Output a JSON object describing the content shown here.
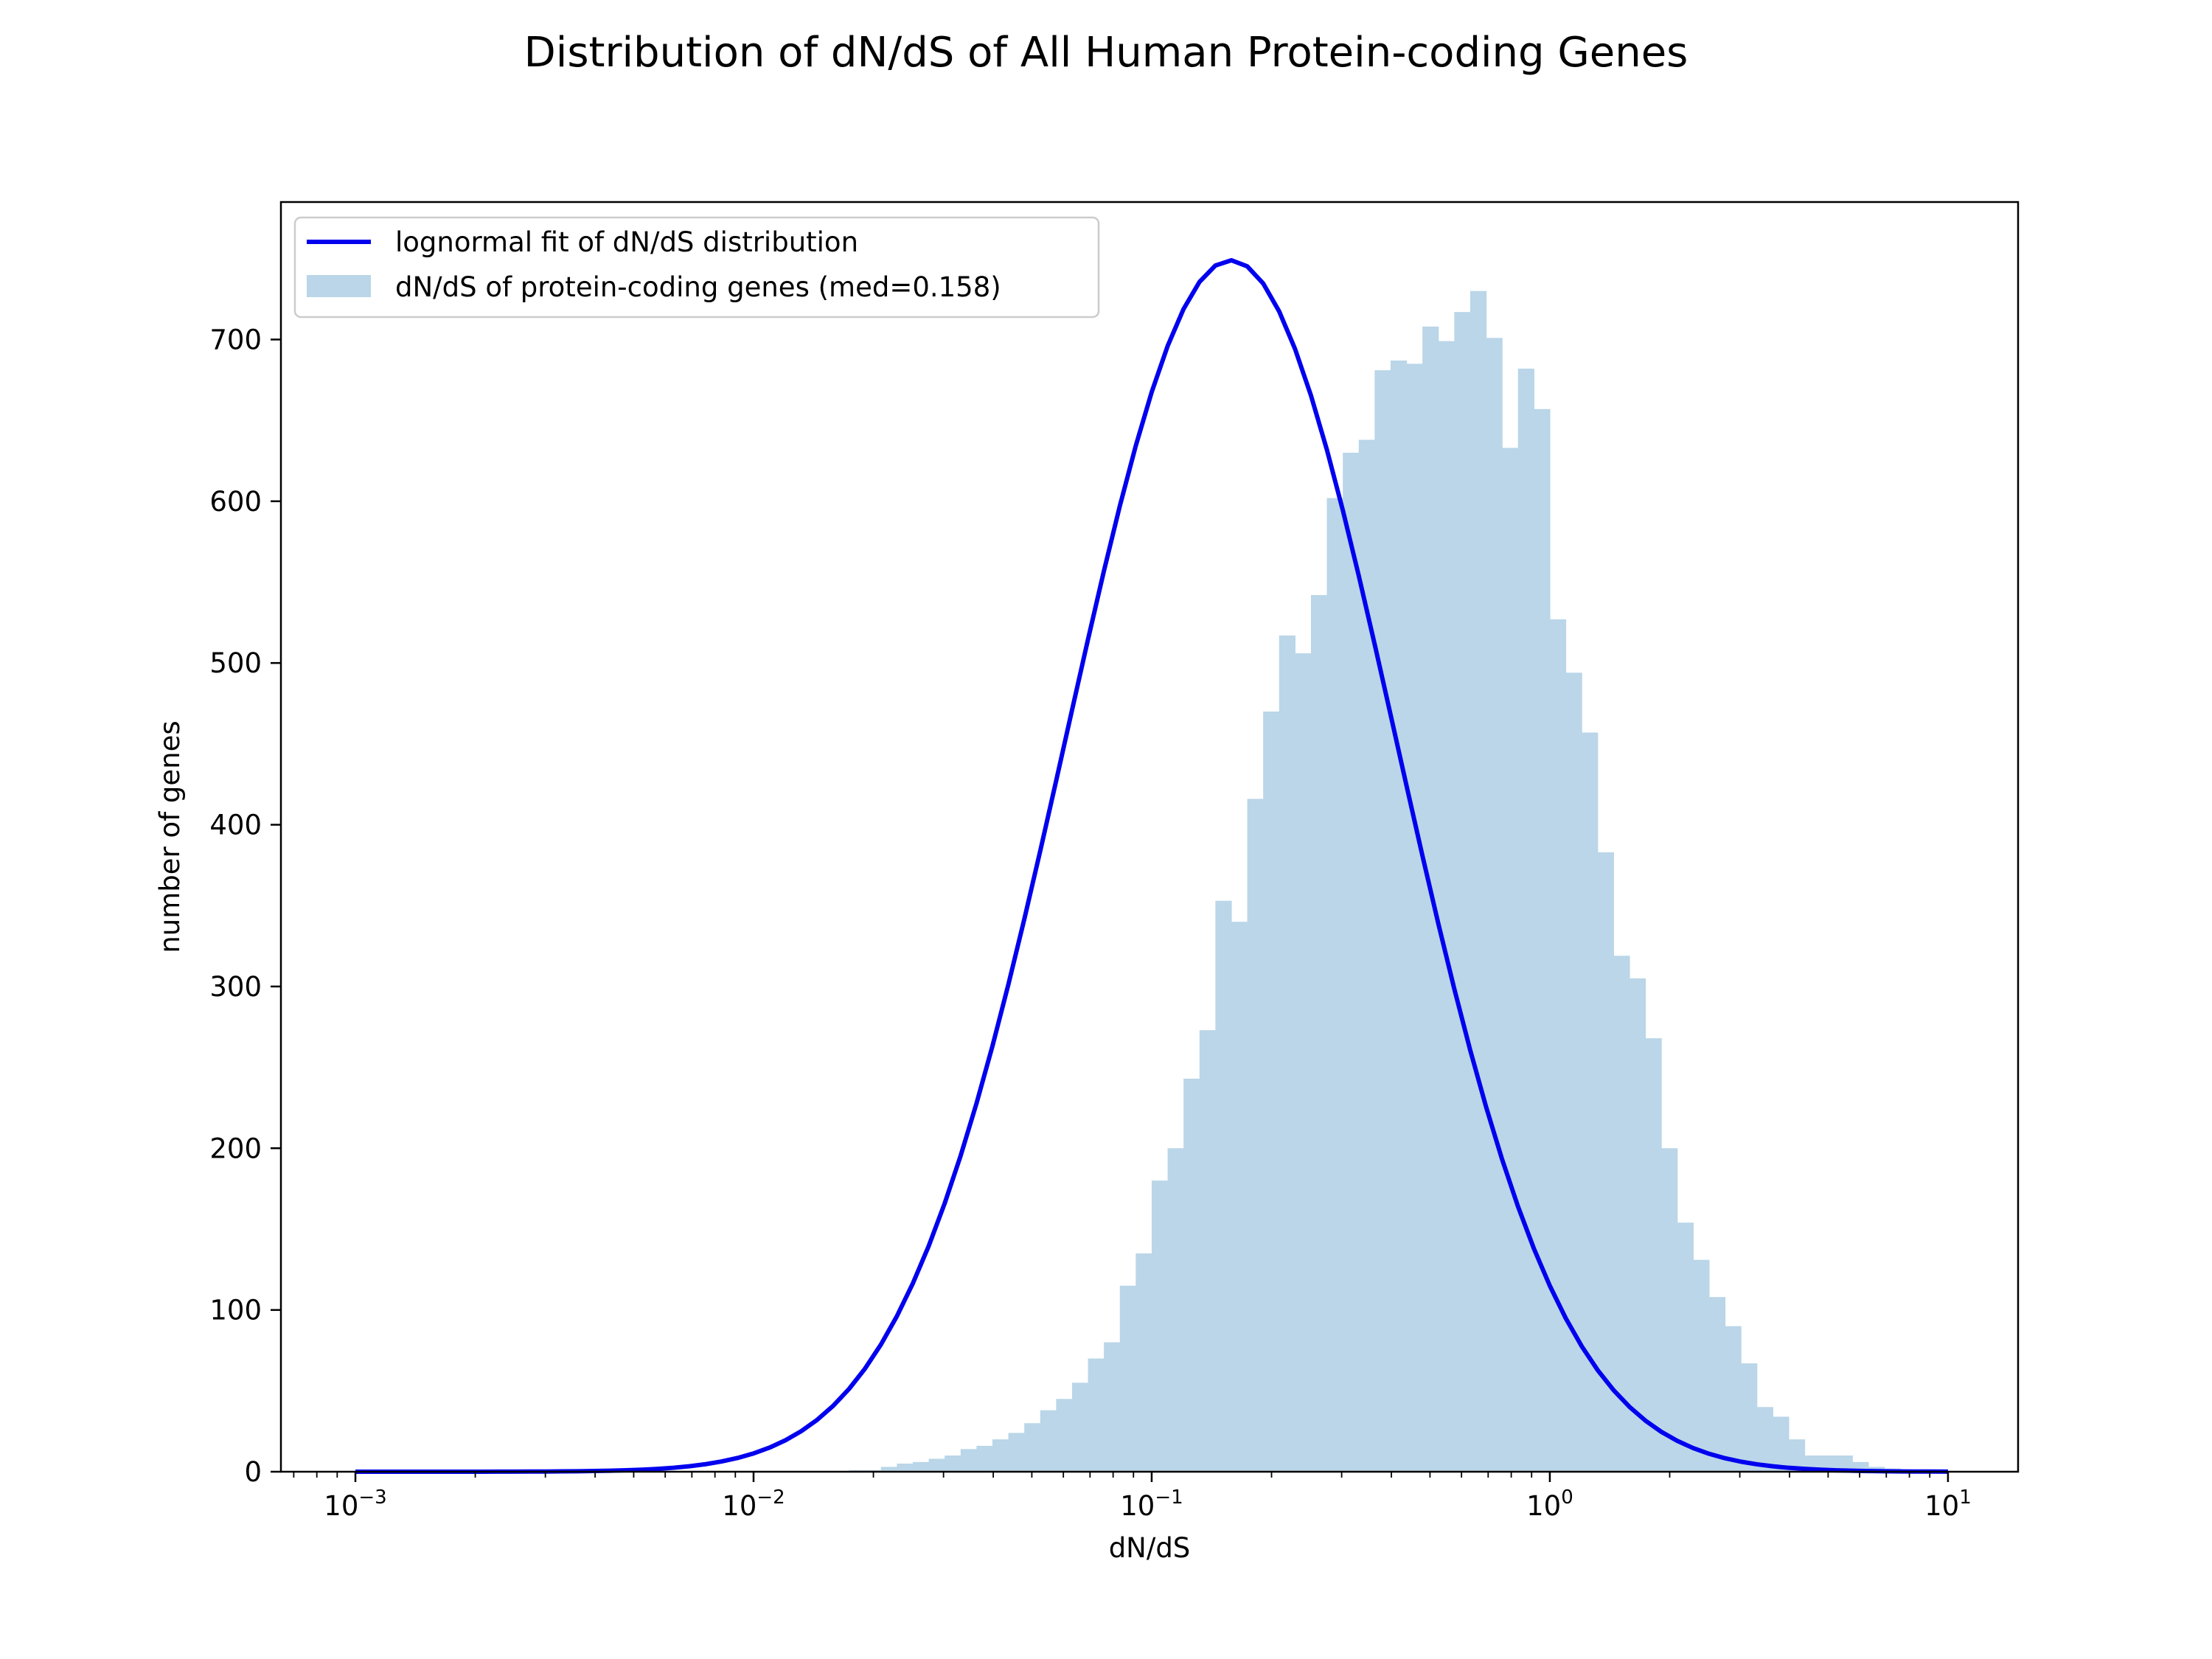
{
  "chart_data": {
    "type": "bar",
    "title": "Distribution of dN/dS of All Human Protein-coding Genes",
    "xlabel": "dN/dS",
    "ylabel": "number of genes",
    "x_scale": "log",
    "xlim": [
      0.00065,
      15
    ],
    "ylim": [
      0,
      785
    ],
    "grid": false,
    "legend_position": "top-left",
    "x_ticks": [
      {
        "value": 0.001,
        "base": "10",
        "exp": "−3"
      },
      {
        "value": 0.01,
        "base": "10",
        "exp": "−2"
      },
      {
        "value": 0.1,
        "base": "10",
        "exp": "−1"
      },
      {
        "value": 1,
        "base": "10",
        "exp": "0"
      },
      {
        "value": 10,
        "base": "10",
        "exp": "1"
      }
    ],
    "y_ticks": [
      0,
      100,
      200,
      300,
      400,
      500,
      600,
      700
    ],
    "colors": {
      "histogram": "#bad6e8",
      "fit_line": "#0000ee"
    },
    "series": [
      {
        "name": "dN/dS of protein-coding genes (med=0.158)",
        "type": "histogram",
        "bin_start": 0.001,
        "bin_end": 10,
        "bin_count": 100,
        "counts": [
          0,
          0,
          0,
          0,
          0,
          0,
          0,
          0,
          0,
          0,
          0,
          0,
          0,
          0,
          0,
          0,
          0,
          0,
          0,
          0,
          0,
          0,
          0,
          0,
          0,
          0,
          0,
          0,
          0,
          0,
          0,
          1,
          1,
          3,
          5,
          6,
          8,
          10,
          14,
          16,
          20,
          24,
          30,
          38,
          45,
          55,
          70,
          80,
          115,
          135,
          180,
          200,
          243,
          273,
          353,
          340,
          416,
          470,
          517,
          506,
          542,
          602,
          630,
          638,
          681,
          687,
          685,
          708,
          699,
          717,
          730,
          701,
          633,
          682,
          657,
          527,
          494,
          457,
          383,
          319,
          305,
          268,
          200,
          154,
          131,
          108,
          90,
          67,
          40,
          34,
          20,
          10,
          10,
          10,
          6,
          3,
          2,
          1,
          0,
          0
        ]
      },
      {
        "name": "lognormal fit of dN/dS distribution",
        "type": "line",
        "median": 0.158,
        "sigma_ln": 0.953,
        "peak": 749,
        "x_range": [
          0.001,
          10
        ]
      }
    ]
  }
}
